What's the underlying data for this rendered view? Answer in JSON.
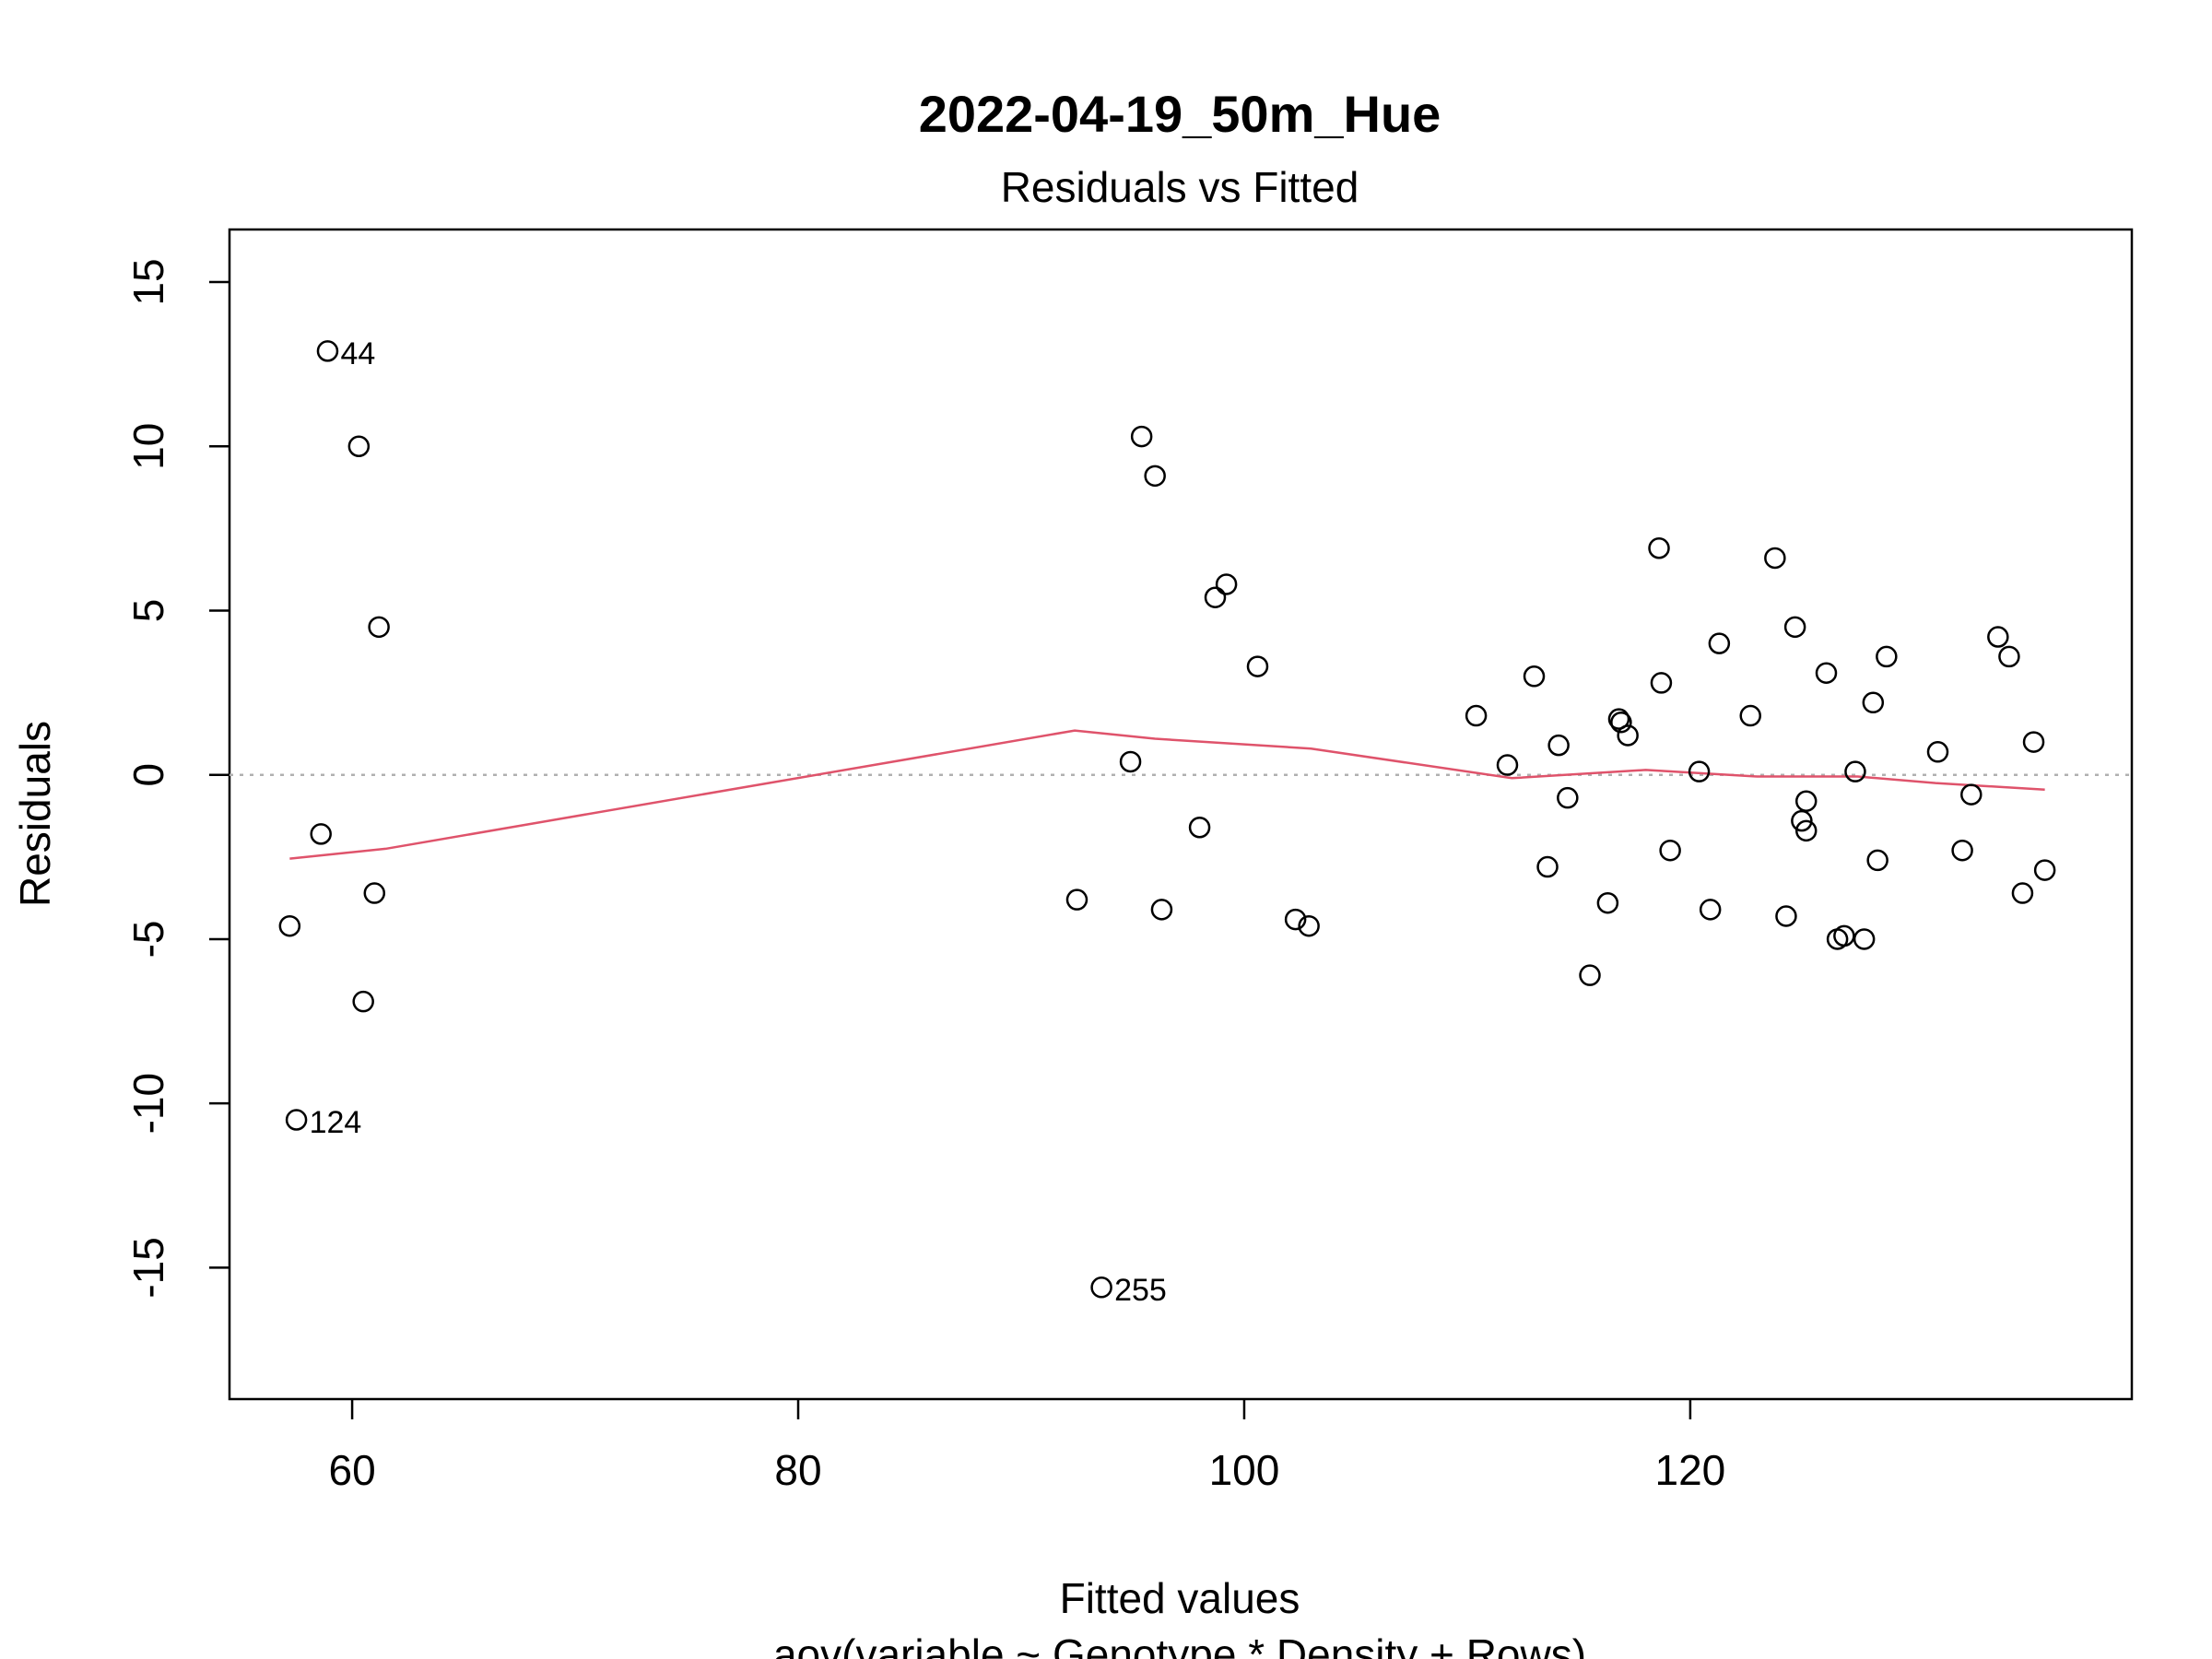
{
  "chart_data": {
    "type": "scatter",
    "title": "2022-04-19_50m_Hue",
    "subtitle": "Residuals vs Fitted",
    "xlabel": "Fitted values",
    "caption": "aov(variable ~ Genotype * Density + Rows)",
    "ylabel": "Residuals",
    "xlim": [
      54.5,
      139.8
    ],
    "ylim": [
      -19.0,
      16.6
    ],
    "x_ticks": [
      60,
      80,
      100,
      120
    ],
    "y_ticks": [
      15,
      10,
      5,
      0,
      -5,
      -10,
      -15
    ],
    "grid": false,
    "colors": {
      "points": "#000000",
      "smooth": "#DF536B",
      "zero_line": "#B0B0B0"
    },
    "points": [
      {
        "x": 58.9,
        "y": 12.9,
        "label": "44"
      },
      {
        "x": 60.3,
        "y": 10.0
      },
      {
        "x": 61.2,
        "y": 4.5
      },
      {
        "x": 58.6,
        "y": -1.8
      },
      {
        "x": 61.0,
        "y": -3.6
      },
      {
        "x": 57.2,
        "y": -4.6
      },
      {
        "x": 60.5,
        "y": -6.9
      },
      {
        "x": 57.5,
        "y": -10.5,
        "label": "124"
      },
      {
        "x": 95.4,
        "y": 10.3
      },
      {
        "x": 96.0,
        "y": 9.1
      },
      {
        "x": 99.2,
        "y": 5.8
      },
      {
        "x": 98.7,
        "y": 5.4
      },
      {
        "x": 100.6,
        "y": 3.3
      },
      {
        "x": 94.9,
        "y": 0.4
      },
      {
        "x": 98.0,
        "y": -1.6
      },
      {
        "x": 92.5,
        "y": -3.8
      },
      {
        "x": 96.3,
        "y": -4.1
      },
      {
        "x": 102.3,
        "y": -4.4
      },
      {
        "x": 102.9,
        "y": -4.6
      },
      {
        "x": 93.6,
        "y": -15.6,
        "label": "255"
      },
      {
        "x": 110.4,
        "y": 1.8
      },
      {
        "x": 111.8,
        "y": 0.3
      },
      {
        "x": 113.0,
        "y": 3.0
      },
      {
        "x": 113.6,
        "y": -2.8
      },
      {
        "x": 114.1,
        "y": 0.9
      },
      {
        "x": 114.5,
        "y": -0.7
      },
      {
        "x": 115.5,
        "y": -6.1
      },
      {
        "x": 116.3,
        "y": -3.9
      },
      {
        "x": 116.8,
        "y": 1.7
      },
      {
        "x": 116.9,
        "y": 1.6
      },
      {
        "x": 117.2,
        "y": 1.2
      },
      {
        "x": 118.6,
        "y": 6.9
      },
      {
        "x": 118.7,
        "y": 2.8
      },
      {
        "x": 119.1,
        "y": -2.3
      },
      {
        "x": 120.4,
        "y": 0.1
      },
      {
        "x": 120.9,
        "y": -4.1
      },
      {
        "x": 121.3,
        "y": 4.0
      },
      {
        "x": 122.7,
        "y": 1.8
      },
      {
        "x": 123.8,
        "y": 6.6
      },
      {
        "x": 124.3,
        "y": -4.3
      },
      {
        "x": 124.7,
        "y": 4.5
      },
      {
        "x": 125.0,
        "y": -1.4
      },
      {
        "x": 125.2,
        "y": -0.8
      },
      {
        "x": 125.2,
        "y": -1.7
      },
      {
        "x": 126.1,
        "y": 3.1
      },
      {
        "x": 126.6,
        "y": -5.0
      },
      {
        "x": 126.9,
        "y": -4.9
      },
      {
        "x": 127.4,
        "y": 0.1
      },
      {
        "x": 127.8,
        "y": -5.0
      },
      {
        "x": 128.2,
        "y": 2.2
      },
      {
        "x": 128.4,
        "y": -2.6
      },
      {
        "x": 128.8,
        "y": 3.6
      },
      {
        "x": 131.1,
        "y": 0.7
      },
      {
        "x": 132.2,
        "y": -2.3
      },
      {
        "x": 132.6,
        "y": -0.6
      },
      {
        "x": 133.8,
        "y": 4.2
      },
      {
        "x": 134.3,
        "y": 3.6
      },
      {
        "x": 134.9,
        "y": -3.6
      },
      {
        "x": 135.4,
        "y": 1.0
      },
      {
        "x": 135.9,
        "y": -2.9
      }
    ],
    "smooth_line": {
      "x": [
        57.2,
        61.5,
        92.4,
        96.0,
        103.0,
        112.0,
        118.0,
        123.0,
        127.5,
        131.0,
        135.9
      ],
      "y": [
        -2.55,
        -2.25,
        1.35,
        1.1,
        0.8,
        -0.1,
        0.15,
        -0.05,
        -0.05,
        -0.25,
        -0.45
      ]
    }
  }
}
